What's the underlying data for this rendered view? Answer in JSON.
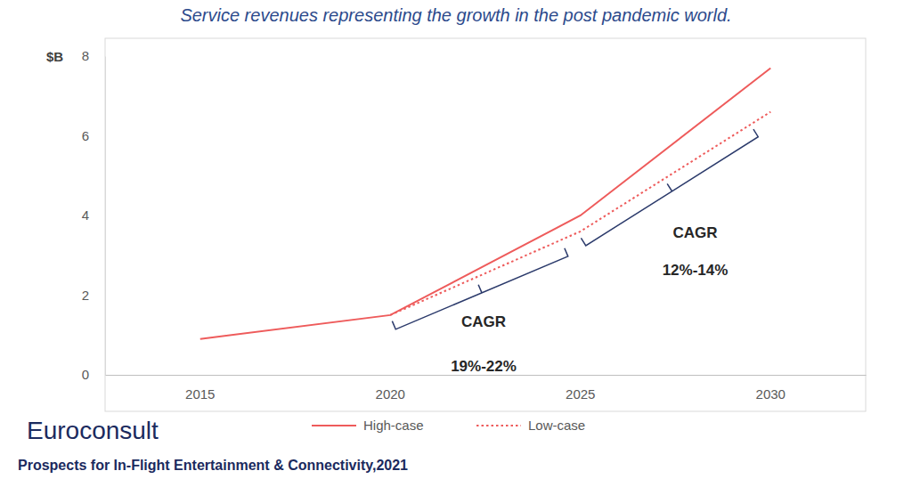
{
  "chart_data": {
    "type": "line",
    "title": "Service revenues representing the growth in the post pandemic world.",
    "y_label": "$B",
    "categories": [
      "2015",
      "2020",
      "2025",
      "2030"
    ],
    "series": [
      {
        "name": "High-case",
        "color": "#ee5b5b",
        "line_style": "solid",
        "values": [
          0.9,
          1.5,
          4.0,
          7.7
        ]
      },
      {
        "name": "Low-case",
        "color": "#ee5b5b",
        "line_style": "dotted",
        "values": [
          null,
          1.5,
          3.6,
          6.6
        ]
      }
    ],
    "ylim": [
      0,
      8
    ],
    "yticks": [
      0,
      2,
      4,
      6,
      8
    ],
    "legend": "bottom",
    "annotations": [
      {
        "label": "CAGR",
        "text": "19%-22%",
        "period": [
          "2020",
          "2025"
        ]
      },
      {
        "label": "CAGR",
        "text": "12%-14%",
        "period": [
          "2025",
          "2030"
        ]
      }
    ],
    "logo": "Euroconsult",
    "source": "Prospects for In-Flight Entertainment & Connectivity,2021"
  }
}
